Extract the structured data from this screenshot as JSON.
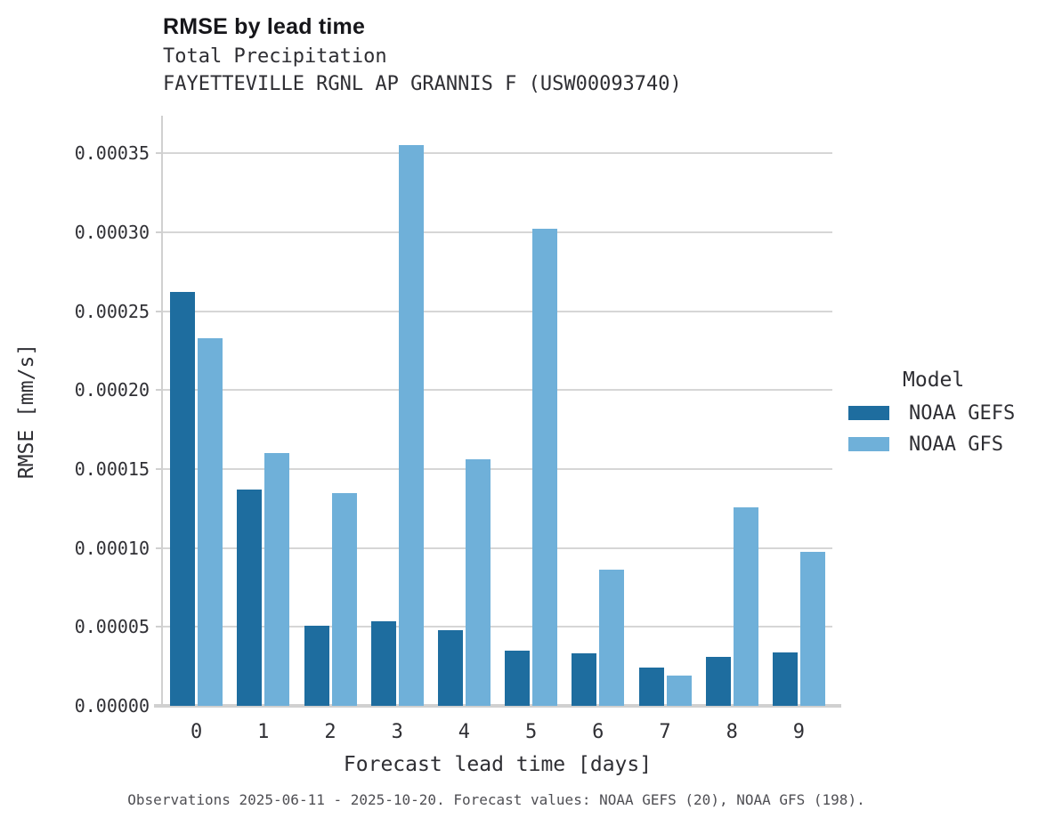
{
  "header": {
    "title": "RMSE by lead time",
    "subtitle1": "Total Precipitation",
    "subtitle2": "FAYETTEVILLE RGNL AP GRANNIS F (USW00093740)"
  },
  "chart_data": {
    "type": "bar",
    "title": "RMSE by lead time",
    "subtitle": [
      "Total Precipitation",
      "FAYETTEVILLE RGNL AP GRANNIS F (USW00093740)"
    ],
    "categories": [
      "0",
      "1",
      "2",
      "3",
      "4",
      "5",
      "6",
      "7",
      "8",
      "9"
    ],
    "series": [
      {
        "name": "NOAA GEFS",
        "color": "#1e6d9f",
        "values": [
          0.000262,
          0.000137,
          5.05e-05,
          5.35e-05,
          4.78e-05,
          3.52e-05,
          3.32e-05,
          2.4e-05,
          3.08e-05,
          3.41e-05
        ]
      },
      {
        "name": "NOAA GFS",
        "color": "#6fb0d9",
        "values": [
          0.000233,
          0.00016,
          0.000135,
          0.000355,
          0.000156,
          0.000302,
          8.6e-05,
          1.9e-05,
          0.000126,
          9.74e-05
        ]
      }
    ],
    "xlabel": "Forecast lead time [days]",
    "ylabel": "RMSE [mm/s]",
    "ylim": [
      0,
      0.0003738
    ],
    "yticks": [
      0,
      5e-05,
      0.0001,
      0.00015,
      0.0002,
      0.00025,
      0.0003,
      0.00035
    ],
    "ytick_labels": [
      "0.00000",
      "0.00005",
      "0.00010",
      "0.00015",
      "0.00020",
      "0.00025",
      "0.00030",
      "0.00035"
    ],
    "grid": "horizontal-only",
    "legend_title": "Model",
    "legend_position": "right-of-plot"
  },
  "legend": {
    "title": "Model",
    "items": [
      {
        "label": "NOAA GEFS",
        "color": "#1e6d9f"
      },
      {
        "label": "NOAA GFS",
        "color": "#6fb0d9"
      }
    ]
  },
  "footer": {
    "note": "Observations 2025-06-11 - 2025-10-20. Forecast values: NOAA GEFS (20), NOAA GFS (198)."
  },
  "colors": {
    "gefs_bar": "#1e6d9f",
    "gfs_bar": "#6fb0d9",
    "gridline": "#d6d6d6",
    "axis_spine": "#d0d0d0",
    "title_text": "#16161a",
    "body_text": "#2e2e33",
    "footer_text": "#4f4f54",
    "background": "#ffffff"
  }
}
